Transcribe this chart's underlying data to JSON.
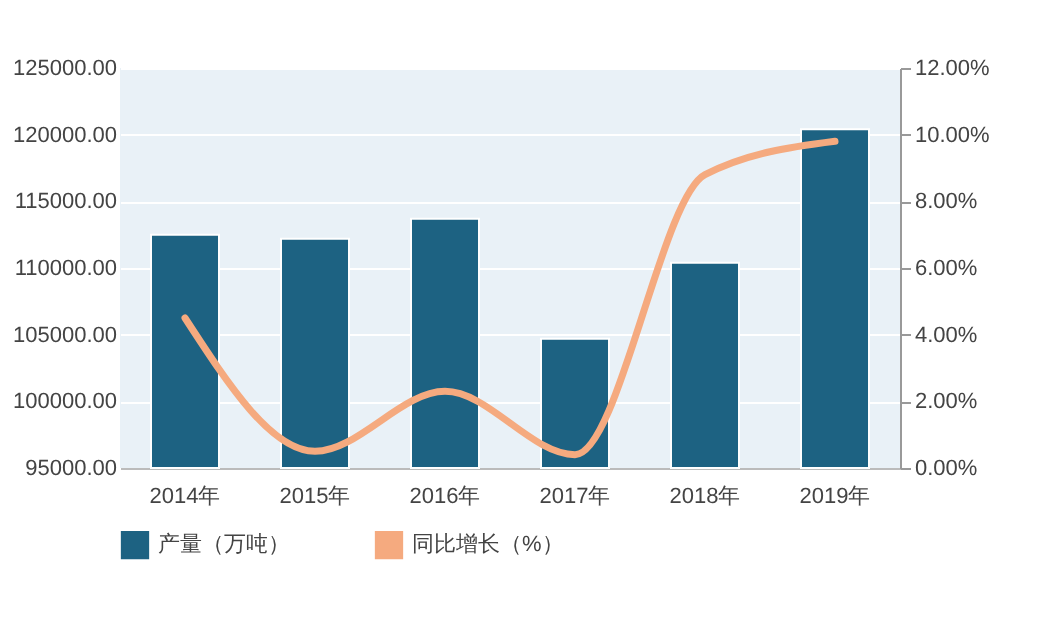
{
  "chart_data": {
    "type": "bar",
    "categories": [
      "2014年",
      "2015年",
      "2016年",
      "2017年",
      "2018年",
      "2019年"
    ],
    "series": [
      {
        "name": "产量（万吨）",
        "color": "#1d6282",
        "values": [
          112500,
          112200,
          113700,
          104700,
          110400,
          120400
        ]
      },
      {
        "name": "同比增长（%）",
        "type": "line",
        "axis": "y2",
        "color": "#f5aa7f",
        "values": [
          4.5,
          0.5,
          2.3,
          0.4,
          8.8,
          9.8
        ]
      }
    ],
    "ylim": [
      95000,
      125000
    ],
    "yticks": [
      {
        "value": 95000,
        "label": "95000.00"
      },
      {
        "value": 100000,
        "label": "100000.00"
      },
      {
        "value": 105000,
        "label": "105000.00"
      },
      {
        "value": 110000,
        "label": "110000.00"
      },
      {
        "value": 115000,
        "label": "115000.00"
      },
      {
        "value": 120000,
        "label": "120000.00"
      },
      {
        "value": 125000,
        "label": "125000.00"
      }
    ],
    "y2lim": [
      0,
      12
    ],
    "y2ticks": [
      {
        "value": 0,
        "label": "0.00%"
      },
      {
        "value": 2,
        "label": "2.00%"
      },
      {
        "value": 4,
        "label": "4.00%"
      },
      {
        "value": 6,
        "label": "6.00%"
      },
      {
        "value": 8,
        "label": "8.00%"
      },
      {
        "value": 10,
        "label": "10.00%"
      },
      {
        "value": 12,
        "label": "12.00%"
      }
    ],
    "grid": "y",
    "legend": "bottom",
    "marker": "none",
    "line_style": "solid"
  }
}
